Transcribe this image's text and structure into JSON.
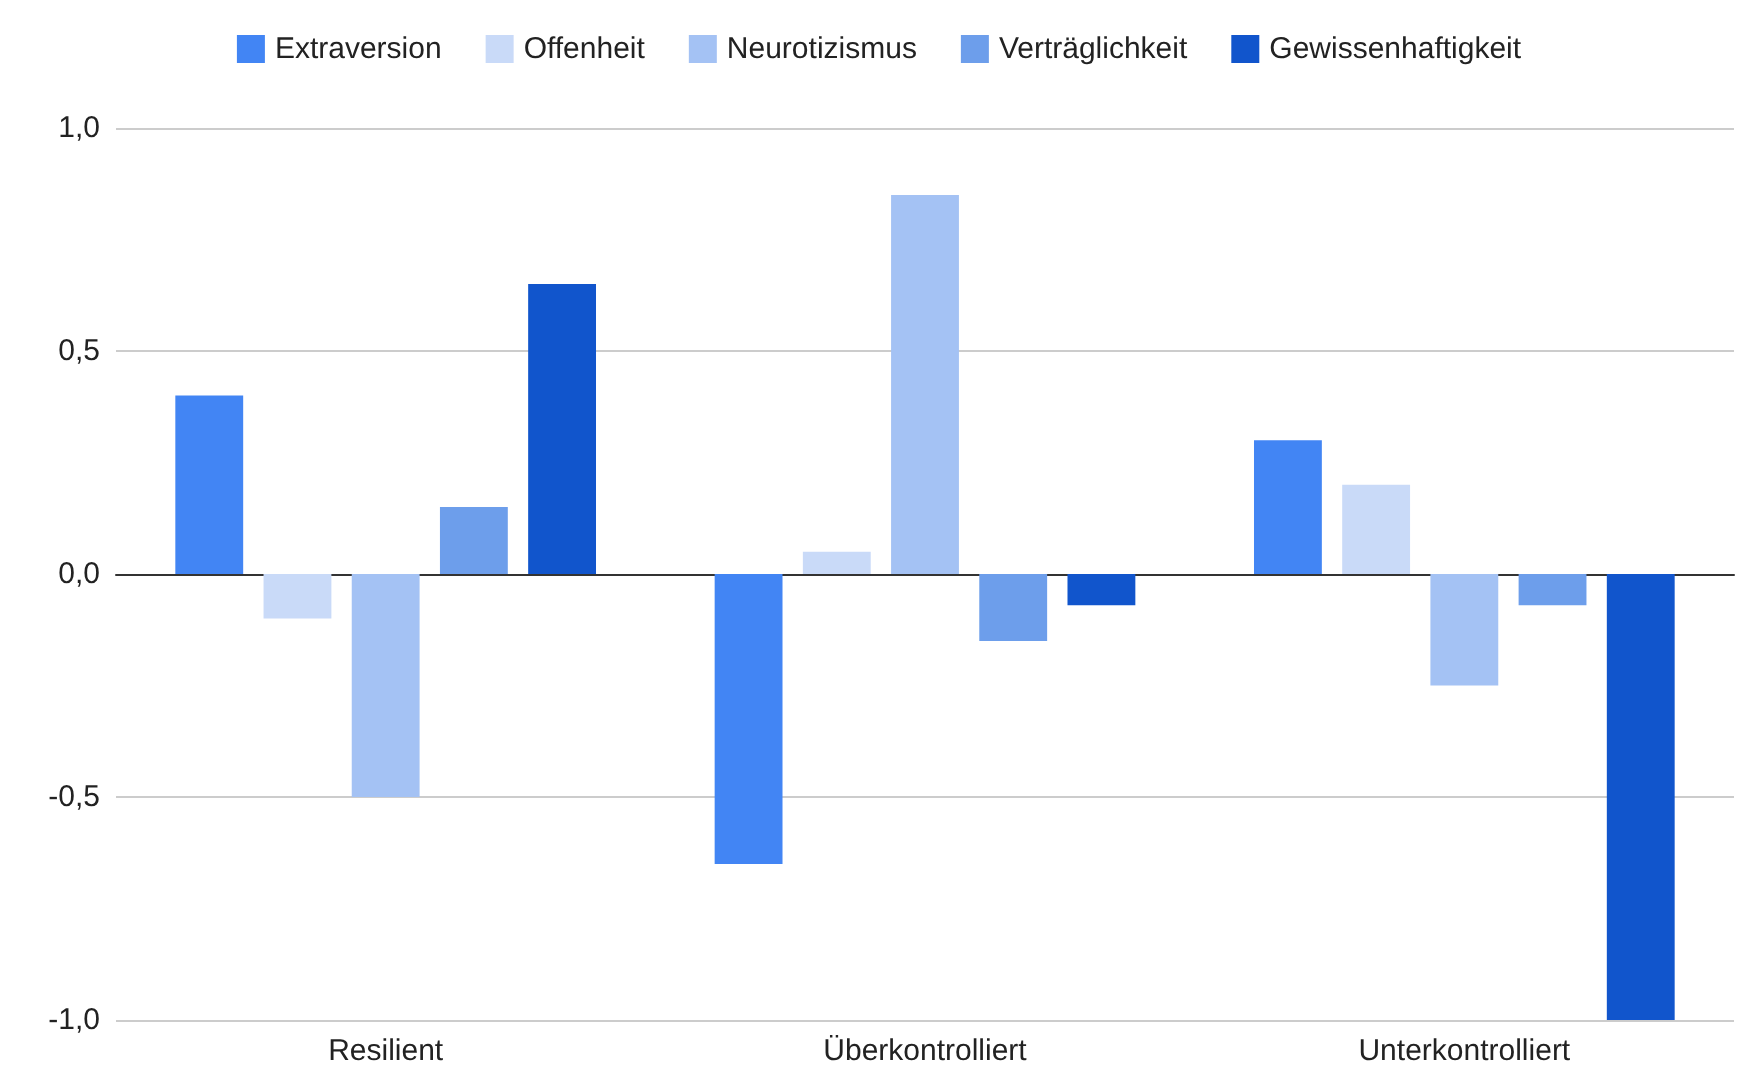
{
  "chart_data": {
    "type": "bar",
    "categories": [
      "Resilient",
      "Überkontrolliert",
      "Unterkontrolliert"
    ],
    "series": [
      {
        "name": "Extraversion",
        "color": "#4285f4",
        "values": [
          0.4,
          -0.65,
          0.3
        ]
      },
      {
        "name": "Offenheit",
        "color": "#c9daf8",
        "values": [
          -0.1,
          0.05,
          0.2
        ]
      },
      {
        "name": "Neurotizismus",
        "color": "#a4c2f4",
        "values": [
          -0.5,
          0.85,
          -0.25
        ]
      },
      {
        "name": "Verträglichkeit",
        "color": "#6d9eeb",
        "values": [
          0.15,
          -0.15,
          -0.07
        ]
      },
      {
        "name": "Gewissenhaftigkeit",
        "color": "#1155cc",
        "values": [
          0.65,
          -0.07,
          -1.0
        ]
      }
    ],
    "ylim": [
      -1.0,
      1.0
    ],
    "yticks": [
      {
        "value": -1.0,
        "label": "-1,0"
      },
      {
        "value": -0.5,
        "label": "-0,5"
      },
      {
        "value": 0,
        "label": "0,0"
      },
      {
        "value": 0.5,
        "label": "0,5"
      },
      {
        "value": 1.0,
        "label": "1,0"
      }
    ],
    "grid": "y",
    "legend": "top"
  }
}
